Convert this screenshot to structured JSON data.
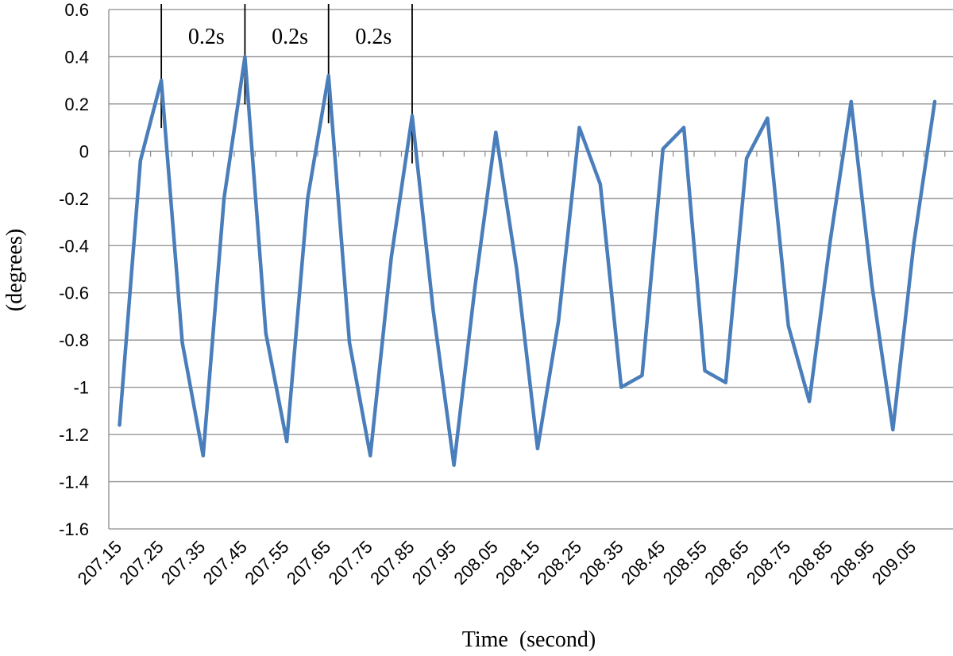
{
  "chart_data": {
    "type": "line",
    "title": "",
    "xlabel": "Time  (second)",
    "ylabel": "(degrees)",
    "ylim": [
      -1.6,
      0.6
    ],
    "yticks": [
      "0.6",
      "0.4",
      "0.2",
      "0",
      "-0.2",
      "-0.4",
      "-0.6",
      "-0.8",
      "-1",
      "-1.2",
      "-1.4",
      "-1.6"
    ],
    "xticks": [
      "207.15",
      "207.25",
      "207.35",
      "207.45",
      "207.55",
      "207.65",
      "207.75",
      "207.85",
      "207.95",
      "208.05",
      "208.15",
      "208.25",
      "208.35",
      "208.45",
      "208.55",
      "208.65",
      "208.75",
      "208.85",
      "208.95",
      "209.05"
    ],
    "grid": true,
    "line_color": "#4a7ebb",
    "series": [
      {
        "x": [
          207.15,
          207.2,
          207.25,
          207.3,
          207.35,
          207.4,
          207.45,
          207.5,
          207.55,
          207.6,
          207.65,
          207.7,
          207.75,
          207.8,
          207.85,
          207.9,
          207.95,
          208.0,
          208.05,
          208.1,
          208.15,
          208.2,
          208.25,
          208.3,
          208.35,
          208.4,
          208.45,
          208.5,
          208.55,
          208.6,
          208.65,
          208.7,
          208.75,
          208.8,
          208.85,
          208.9,
          208.95,
          209.0,
          209.05,
          209.1
        ],
        "values": [
          -1.16,
          -0.04,
          0.3,
          -0.81,
          -1.29,
          -0.2,
          0.4,
          -0.77,
          -1.23,
          -0.2,
          0.32,
          -0.81,
          -1.29,
          -0.45,
          0.15,
          -0.67,
          -1.33,
          -0.58,
          0.08,
          -0.5,
          -1.26,
          -0.72,
          0.1,
          -0.14,
          -1.0,
          -0.95,
          0.01,
          0.1,
          -0.93,
          -0.98,
          -0.03,
          0.14,
          -0.74,
          -1.06,
          -0.38,
          0.21,
          -0.57,
          -1.18,
          -0.39,
          0.21
        ]
      }
    ],
    "annotations": [
      {
        "label": "0.2s"
      },
      {
        "label": "0.2s"
      },
      {
        "label": "0.2s"
      }
    ],
    "marker_times": [
      207.25,
      207.45,
      207.65,
      207.85
    ]
  }
}
